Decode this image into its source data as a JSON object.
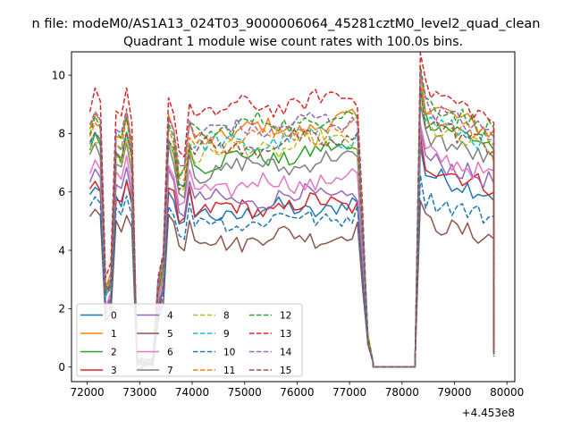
{
  "figure": {
    "suptitle": "n file: modeM0/AS1A13_024T03_9000006064_45281cztM0_level2_quad_clean"
  },
  "chart_data": {
    "type": "line",
    "title": "Quadrant 1 module wise count rates with 100.0s bins.",
    "xlabel": "",
    "ylabel": "",
    "x_offset_label": "+4.453e8",
    "xlim": [
      71700,
      80150
    ],
    "ylim": [
      -0.5,
      10.8
    ],
    "xticks": [
      72000,
      73000,
      74000,
      75000,
      76000,
      77000,
      78000,
      79000,
      80000
    ],
    "yticks": [
      0,
      2,
      4,
      6,
      8,
      10
    ],
    "grid": false,
    "legend": {
      "placement": "lower-left",
      "columns": 4
    },
    "segments": [
      {
        "start": 72050,
        "end": 77450,
        "step": 100
      },
      {
        "start": 78350,
        "end": 79750,
        "step": 100
      }
    ],
    "gap": {
      "x": [
        77450,
        77600,
        77700,
        77800,
        77900,
        78000,
        78100,
        78200,
        78250
      ],
      "y": 0.0
    },
    "series": [
      {
        "name": "0",
        "color": "#1f77b4",
        "dash": "solid",
        "level": 5.2,
        "early": 6.1,
        "hi": 6.7
      },
      {
        "name": "1",
        "color": "#ff7f0e",
        "dash": "solid",
        "level": 7.9,
        "early": 8.5,
        "hi": 9.1
      },
      {
        "name": "2",
        "color": "#2ca02c",
        "dash": "solid",
        "level": 7.0,
        "early": 7.8,
        "hi": 8.6
      },
      {
        "name": "3",
        "color": "#d62728",
        "dash": "solid",
        "level": 5.3,
        "early": 6.2,
        "hi": 7.0
      },
      {
        "name": "4",
        "color": "#9467bd",
        "dash": "solid",
        "level": 5.6,
        "early": 6.6,
        "hi": 7.2
      },
      {
        "name": "5",
        "color": "#8c564b",
        "dash": "solid",
        "level": 4.3,
        "early": 5.2,
        "hi": 5.0
      },
      {
        "name": "6",
        "color": "#e377c2",
        "dash": "solid",
        "level": 6.1,
        "early": 6.9,
        "hi": 7.4
      },
      {
        "name": "7",
        "color": "#7f7f7f",
        "dash": "solid",
        "level": 6.7,
        "early": 7.5,
        "hi": 8.0
      },
      {
        "name": "8",
        "color": "#bcbd22",
        "dash": "dashed",
        "level": 7.3,
        "early": 7.7,
        "hi": 8.3
      },
      {
        "name": "9",
        "color": "#17becf",
        "dash": "dashed",
        "level": 7.5,
        "early": 7.9,
        "hi": 8.6
      },
      {
        "name": "10",
        "color": "#1f77b4",
        "dash": "dashed",
        "level": 4.9,
        "early": 5.6,
        "hi": 5.8
      },
      {
        "name": "11",
        "color": "#ff7f0e",
        "dash": "dashed",
        "level": 7.7,
        "early": 8.2,
        "hi": 8.8
      },
      {
        "name": "12",
        "color": "#2ca02c",
        "dash": "dashed",
        "level": 8.1,
        "early": 8.4,
        "hi": 9.2
      },
      {
        "name": "13",
        "color": "#d62728",
        "dash": "dashed",
        "level": 8.7,
        "early": 9.2,
        "hi": 9.6
      },
      {
        "name": "14",
        "color": "#9467bd",
        "dash": "dashed",
        "level": 8.0,
        "early": 8.6,
        "hi": 9.0
      },
      {
        "name": "15",
        "color": "#8c564b",
        "dash": "dashed",
        "level": 7.4,
        "early": 7.9,
        "hi": 8.5
      }
    ]
  }
}
